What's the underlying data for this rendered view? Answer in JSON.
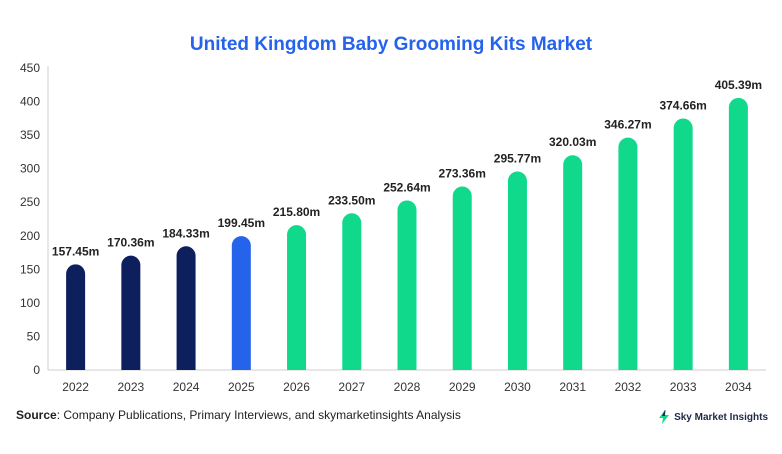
{
  "chart_data": {
    "type": "bar",
    "title": "United Kingdom Baby Grooming Kits Market",
    "categories": [
      "2022",
      "2023",
      "2024",
      "2025",
      "2026",
      "2027",
      "2028",
      "2029",
      "2030",
      "2031",
      "2032",
      "2033",
      "2034"
    ],
    "values": [
      157.45,
      170.36,
      184.33,
      199.45,
      215.8,
      233.5,
      252.64,
      273.36,
      295.77,
      320.03,
      346.27,
      374.66,
      405.39
    ],
    "data_labels": [
      "157.45m",
      "170.36m",
      "184.33m",
      "199.45m",
      "215.80m",
      "233.50m",
      "252.64m",
      "273.36m",
      "295.77m",
      "320.03m",
      "346.27m",
      "374.66m",
      "405.39m"
    ],
    "ylim": [
      0,
      450
    ],
    "yticks": [
      0,
      50,
      100,
      150,
      200,
      250,
      300,
      350,
      400,
      450
    ],
    "grid": false,
    "colors": {
      "historical": "#0d1f5c",
      "base_year": "#2563eb",
      "forecast": "#10d98c"
    },
    "bar_color_groups": [
      "historical",
      "historical",
      "historical",
      "base_year",
      "forecast",
      "forecast",
      "forecast",
      "forecast",
      "forecast",
      "forecast",
      "forecast",
      "forecast",
      "forecast"
    ]
  },
  "footer": {
    "source_label": "Source",
    "source_text": ": Company Publications, Primary Interviews, and skymarketinsights Analysis",
    "brand_name": "Sky Market Insights",
    "brand_icon": "lightning-bolt-icon"
  }
}
